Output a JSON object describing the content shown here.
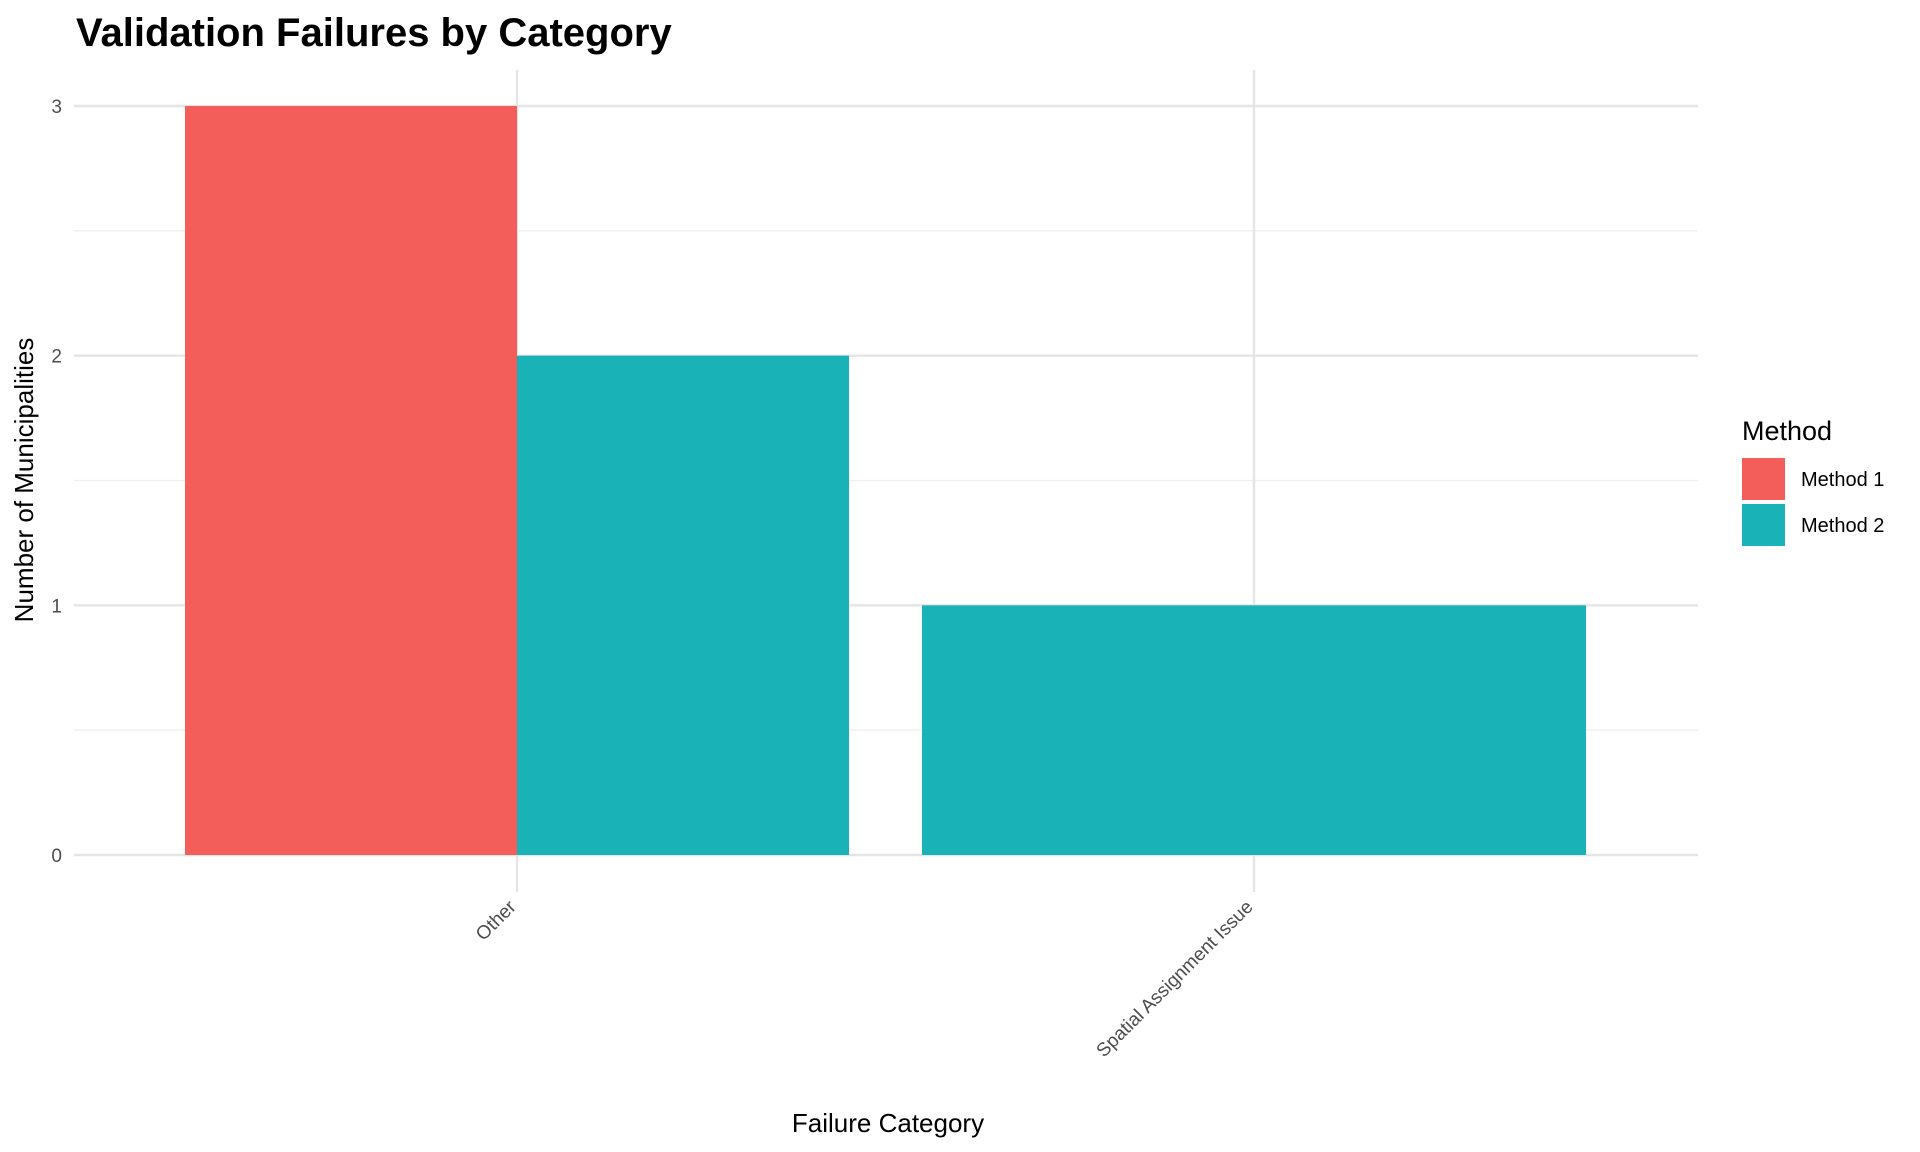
{
  "chart_data": {
    "type": "bar",
    "title": "Validation Failures by Category",
    "xlabel": "Failure Category",
    "ylabel": "Number of Municipalities",
    "categories": [
      "Other",
      "Spatial Assignment Issue"
    ],
    "series": [
      {
        "name": "Method 1",
        "color": "#F35E5A",
        "values": [
          3,
          null
        ]
      },
      {
        "name": "Method 2",
        "color": "#19B2B7",
        "values": [
          2,
          1
        ]
      }
    ],
    "ylim": [
      0,
      3
    ],
    "yticks": [
      0,
      1,
      2,
      3
    ],
    "grid": true,
    "legend": {
      "title": "Method",
      "position": "right"
    }
  }
}
